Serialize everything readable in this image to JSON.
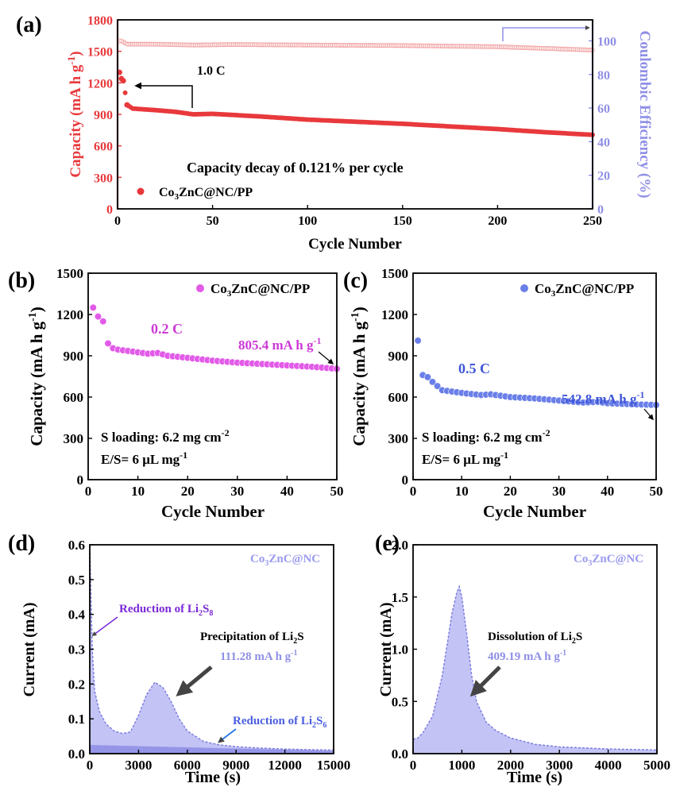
{
  "chart_data": [
    {
      "panel": "(a)",
      "type": "scatter",
      "xlabel": "Cycle Number",
      "ylabel_left": "Capacity (mA h g-1)",
      "ylabel_right": "Coulombic Efficiency (%)",
      "xlim": [
        0,
        250
      ],
      "ylim_left": [
        0,
        1800
      ],
      "ylim_right": [
        0,
        112.5
      ],
      "xticks": [
        "0",
        "50",
        "100",
        "150",
        "200",
        "250"
      ],
      "yticks_left": [
        "0",
        "300",
        "600",
        "900",
        "1200",
        "1500",
        "1800"
      ],
      "yticks_right": [
        "0",
        "20",
        "40",
        "60",
        "80",
        "100"
      ],
      "rate_label": "1.0 C",
      "annotation": "Capacity decay of 0.121% per cycle",
      "series": [
        {
          "name": "Co3ZnC@NC/PP",
          "axis": "left",
          "color": "#e8393c",
          "x": [
            1,
            2,
            3,
            5,
            8,
            12,
            20,
            30,
            40,
            50,
            75,
            100,
            125,
            150,
            175,
            200,
            225,
            250
          ],
          "y": [
            1300,
            1240,
            1220,
            990,
            955,
            950,
            940,
            925,
            900,
            905,
            880,
            850,
            830,
            810,
            785,
            760,
            730,
            705
          ]
        },
        {
          "name": "Coulombic Efficiency",
          "axis": "right",
          "color": "#e8393c",
          "x": [
            1,
            2,
            5,
            20,
            40,
            60,
            100,
            150,
            200,
            250
          ],
          "y": [
            100,
            100,
            98,
            98,
            97.5,
            97.8,
            97.5,
            97.2,
            96.5,
            94.5
          ]
        }
      ]
    },
    {
      "panel": "(b)",
      "type": "scatter",
      "xlabel": "Cycle Number",
      "ylabel": "Capacity (mA h g-1)",
      "xlim": [
        0,
        50
      ],
      "ylim": [
        0,
        1500
      ],
      "xticks": [
        "0",
        "10",
        "20",
        "30",
        "40",
        "50"
      ],
      "yticks": [
        "0",
        "300",
        "600",
        "900",
        "1200",
        "1500"
      ],
      "legend": "Co3ZnC@NC/PP",
      "rate_label": "0.2 C",
      "end_label": "805.4 mA h g-1",
      "notes": [
        "S loading: 6.2 mg cm-2",
        "E/S= 6 μL mg-1"
      ],
      "series": [
        {
          "name": "Co3ZnC@NC/PP",
          "color": "#e25be8",
          "x": [
            1,
            2,
            3,
            4,
            5,
            6,
            8,
            10,
            12,
            14,
            16,
            20,
            25,
            30,
            35,
            40,
            45,
            50
          ],
          "y": [
            1250,
            1185,
            1150,
            990,
            955,
            945,
            935,
            925,
            915,
            920,
            900,
            885,
            865,
            850,
            840,
            830,
            820,
            805.4
          ]
        }
      ]
    },
    {
      "panel": "(c)",
      "type": "scatter",
      "xlabel": "Cycle Number",
      "ylabel": "Capacity (mA h g-1)",
      "xlim": [
        0,
        50
      ],
      "ylim": [
        0,
        1500
      ],
      "xticks": [
        "0",
        "10",
        "20",
        "30",
        "40",
        "50"
      ],
      "yticks": [
        "0",
        "300",
        "600",
        "900",
        "1200",
        "1500"
      ],
      "legend": "Co3ZnC@NC/PP",
      "rate_label": "0.5 C",
      "end_label": "542.8 mA h g-1",
      "notes": [
        "S loading: 6.2 mg cm-2",
        "E/S= 6 μL mg-1"
      ],
      "series": [
        {
          "name": "Co3ZnC@NC/PP",
          "color": "#6a7fe8",
          "x": [
            1,
            2,
            3,
            4,
            5,
            6,
            8,
            10,
            12,
            14,
            16,
            20,
            25,
            30,
            35,
            38,
            40,
            45,
            50
          ],
          "y": [
            1010,
            760,
            745,
            710,
            680,
            650,
            640,
            630,
            622,
            615,
            620,
            600,
            590,
            575,
            560,
            565,
            555,
            548,
            542.8
          ]
        }
      ]
    },
    {
      "panel": "(d)",
      "type": "area",
      "xlabel": "Time (s)",
      "ylabel": "Current (mA)",
      "xlim": [
        0,
        15000
      ],
      "ylim": [
        0,
        0.6
      ],
      "xticks": [
        "0",
        "3000",
        "6000",
        "9000",
        "12000",
        "15000"
      ],
      "yticks": [
        "0.0",
        "0.1",
        "0.2",
        "0.3",
        "0.4",
        "0.5",
        "0.6"
      ],
      "legend": "Co3ZnC@NC",
      "annotations": [
        "Reduction of Li2S8",
        "Precipitation of Li2S",
        "111.28 mA h g-1",
        "Reduction of Li2S6"
      ],
      "series": [
        {
          "name": "Co3ZnC@NC",
          "color": "#8f8fe6",
          "x": [
            0,
            50,
            150,
            300,
            600,
            1000,
            1500,
            2000,
            2500,
            3000,
            3500,
            4000,
            4500,
            5000,
            5500,
            6000,
            7000,
            8000,
            9000,
            10000,
            12000,
            15000
          ],
          "y": [
            0.6,
            0.5,
            0.3,
            0.18,
            0.12,
            0.085,
            0.065,
            0.058,
            0.062,
            0.11,
            0.17,
            0.205,
            0.19,
            0.15,
            0.1,
            0.065,
            0.035,
            0.025,
            0.02,
            0.017,
            0.013,
            0.01
          ]
        }
      ]
    },
    {
      "panel": "(e)",
      "type": "area",
      "xlabel": "Time (s)",
      "ylabel": "Current (mA)",
      "xlim": [
        0,
        5000
      ],
      "ylim": [
        0,
        2.0
      ],
      "xticks": [
        "0",
        "1000",
        "2000",
        "3000",
        "4000",
        "5000"
      ],
      "yticks": [
        "0.0",
        "0.5",
        "1.0",
        "1.5",
        "2.0"
      ],
      "legend": "Co3ZnC@NC",
      "annotations": [
        "Dissolution of Li2S",
        "409.19 mA h g-1"
      ],
      "series": [
        {
          "name": "Co3ZnC@NC",
          "color": "#8f8fe6",
          "x": [
            0,
            20,
            100,
            200,
            400,
            600,
            700,
            800,
            900,
            950,
            1000,
            1100,
            1200,
            1300,
            1500,
            1700,
            2000,
            2500,
            3000,
            4000,
            5000
          ],
          "y": [
            0.14,
            0.14,
            0.15,
            0.2,
            0.36,
            0.75,
            1.05,
            1.35,
            1.55,
            1.6,
            1.5,
            1.15,
            0.75,
            0.5,
            0.3,
            0.22,
            0.15,
            0.09,
            0.065,
            0.045,
            0.035
          ]
        }
      ]
    }
  ]
}
